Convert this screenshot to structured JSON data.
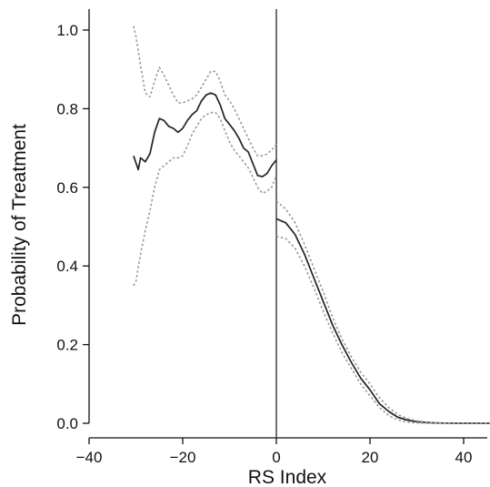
{
  "chart_data": {
    "type": "line",
    "title": "",
    "xlabel": "RS Index",
    "ylabel": "Probability of Treatment",
    "xlim": [
      -45,
      48
    ],
    "ylim": [
      -0.02,
      1.04
    ],
    "xticks": [
      -40,
      -20,
      0,
      20,
      40
    ],
    "yticks": [
      0.0,
      0.2,
      0.4,
      0.6,
      0.8,
      1.0
    ],
    "xtick_labels": [
      "−40",
      "−20",
      "0",
      "20",
      "40"
    ],
    "ytick_labels": [
      "0.0",
      "0.2",
      "0.4",
      "0.6",
      "0.8",
      "1.0"
    ],
    "cutoff": 0,
    "grid": false,
    "legend": "none",
    "colors": {
      "estimate": "#222222",
      "band": "#999999",
      "cutoff": "#333333"
    },
    "series": [
      {
        "role": "estimate-left",
        "style": "solid",
        "x": [
          -30.5,
          -29.5,
          -29,
          -28,
          -27,
          -26,
          -25,
          -24,
          -23,
          -22,
          -21,
          -20,
          -19,
          -18,
          -17,
          -16,
          -15,
          -14,
          -13,
          -12,
          -11,
          -10,
          -9,
          -8,
          -7,
          -6,
          -5,
          -4,
          -3,
          -2,
          -1,
          0
        ],
        "y": [
          0.68,
          0.645,
          0.675,
          0.665,
          0.685,
          0.74,
          0.775,
          0.77,
          0.755,
          0.75,
          0.74,
          0.75,
          0.77,
          0.785,
          0.795,
          0.82,
          0.835,
          0.84,
          0.835,
          0.81,
          0.775,
          0.76,
          0.745,
          0.725,
          0.7,
          0.69,
          0.66,
          0.63,
          0.627,
          0.635,
          0.655,
          0.67
        ]
      },
      {
        "role": "upper-band-left",
        "style": "dotted",
        "x": [
          -30.5,
          -30,
          -29,
          -28,
          -27,
          -26,
          -25,
          -24,
          -23,
          -22,
          -21,
          -20,
          -19,
          -18,
          -17,
          -16,
          -15,
          -14,
          -13,
          -12,
          -11,
          -10,
          -9,
          -8,
          -7,
          -6,
          -5,
          -4,
          -3,
          -2,
          -1,
          0
        ],
        "y": [
          1.01,
          0.985,
          0.91,
          0.84,
          0.83,
          0.87,
          0.905,
          0.885,
          0.86,
          0.835,
          0.815,
          0.815,
          0.82,
          0.825,
          0.835,
          0.855,
          0.875,
          0.895,
          0.895,
          0.87,
          0.835,
          0.82,
          0.8,
          0.775,
          0.75,
          0.725,
          0.7,
          0.68,
          0.68,
          0.685,
          0.695,
          0.71
        ]
      },
      {
        "role": "lower-band-left",
        "style": "dotted",
        "x": [
          -30.5,
          -30,
          -29,
          -28,
          -27,
          -26,
          -25,
          -24,
          -23,
          -22,
          -21,
          -20,
          -19,
          -18,
          -17,
          -16,
          -15,
          -14,
          -13,
          -12,
          -11,
          -10,
          -9,
          -8,
          -7,
          -6,
          -5,
          -4,
          -3,
          -2,
          -1,
          0
        ],
        "y": [
          0.35,
          0.36,
          0.43,
          0.49,
          0.54,
          0.6,
          0.645,
          0.655,
          0.665,
          0.675,
          0.675,
          0.68,
          0.705,
          0.735,
          0.755,
          0.775,
          0.785,
          0.79,
          0.79,
          0.775,
          0.745,
          0.715,
          0.695,
          0.68,
          0.665,
          0.65,
          0.625,
          0.6,
          0.585,
          0.59,
          0.6,
          0.63
        ]
      },
      {
        "role": "estimate-right",
        "style": "solid",
        "x": [
          0,
          2,
          4,
          6,
          8,
          10,
          12,
          14,
          16,
          18,
          20,
          22,
          24,
          26,
          28,
          30,
          32,
          34,
          36,
          38,
          40,
          42,
          44,
          46,
          48
        ],
        "y": [
          0.52,
          0.51,
          0.48,
          0.43,
          0.37,
          0.31,
          0.25,
          0.2,
          0.155,
          0.115,
          0.085,
          0.05,
          0.03,
          0.015,
          0.008,
          0.004,
          0.002,
          0.001,
          0.0005,
          0,
          0,
          0,
          0,
          0,
          0
        ]
      },
      {
        "role": "upper-band-right",
        "style": "dotted",
        "x": [
          0,
          2,
          4,
          6,
          8,
          10,
          12,
          14,
          16,
          18,
          20,
          22,
          24,
          26,
          28,
          30,
          32,
          34,
          36,
          38,
          40,
          42,
          44,
          46,
          48
        ],
        "y": [
          0.565,
          0.545,
          0.51,
          0.455,
          0.395,
          0.335,
          0.27,
          0.215,
          0.17,
          0.13,
          0.1,
          0.065,
          0.04,
          0.022,
          0.012,
          0.006,
          0.003,
          0.001,
          0.0005,
          0,
          0,
          0,
          0,
          0,
          0
        ]
      },
      {
        "role": "lower-band-right",
        "style": "dotted",
        "x": [
          0,
          2,
          4,
          6,
          8,
          10,
          12,
          14,
          16,
          18,
          20,
          22,
          24,
          26,
          28,
          30,
          32,
          34,
          36,
          38,
          40,
          42,
          44,
          46,
          48
        ],
        "y": [
          0.475,
          0.47,
          0.445,
          0.4,
          0.345,
          0.285,
          0.23,
          0.18,
          0.14,
          0.1,
          0.07,
          0.04,
          0.02,
          0.008,
          0.003,
          0.001,
          0,
          0,
          0,
          0,
          0,
          0,
          0,
          0,
          0
        ]
      }
    ]
  }
}
